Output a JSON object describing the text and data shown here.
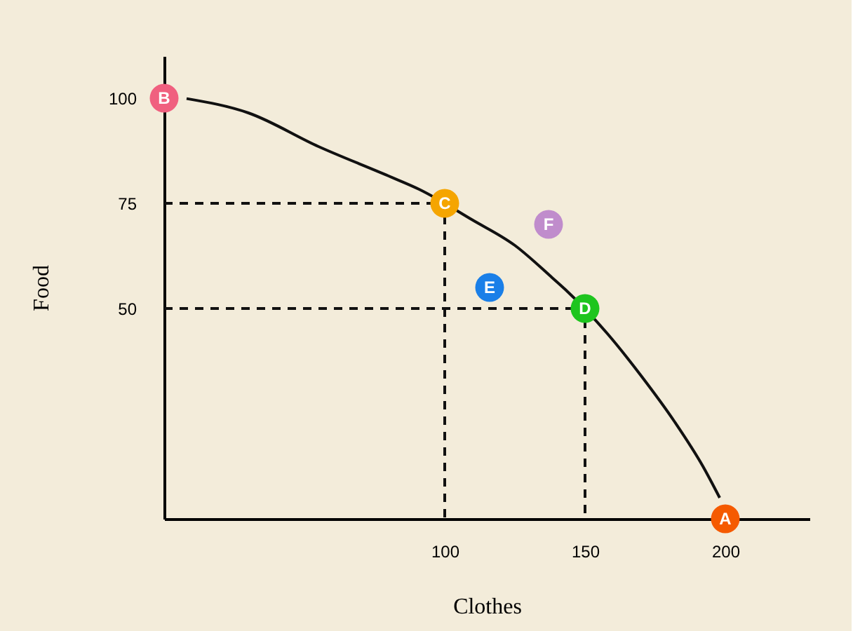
{
  "chart_data": {
    "type": "line",
    "xlabel": "Clothes",
    "ylabel": "Food",
    "xlim": [
      0,
      230
    ],
    "ylim": [
      0,
      110
    ],
    "xticks": [
      100,
      150,
      200
    ],
    "yticks": [
      50,
      75,
      100
    ],
    "grid": false,
    "legend": false,
    "series": [
      {
        "color": "#111111",
        "line_style": "solid",
        "x": [
          8,
          30,
          55,
          80,
          91,
          110,
          125,
          138,
          143,
          158,
          170,
          182,
          192,
          198
        ],
        "values": [
          99.9,
          96.5,
          88.5,
          81.5,
          78.3,
          71,
          65,
          57.5,
          54.5,
          44,
          34,
          23,
          12.5,
          5
        ]
      },
      {
        "color": "#111111",
        "line_style": "dashed",
        "x": [
          0,
          100,
          100
        ],
        "values": [
          75,
          75,
          0
        ]
      },
      {
        "color": "#111111",
        "line_style": "dashed",
        "x": [
          0,
          150,
          150
        ],
        "values": [
          50,
          50,
          0
        ]
      },
      {
        "type": "scatter",
        "marker": "circle",
        "x": [
          200,
          0,
          100,
          150,
          116,
          137
        ],
        "values": [
          0,
          100,
          75,
          50,
          55,
          70
        ],
        "colors": [
          "#f55a00",
          "#f0607f",
          "#f5a500",
          "#1ec51e",
          "#1a7fe8",
          "#c08ccc"
        ]
      }
    ],
    "annotations": [
      {
        "text": "A",
        "x": 200,
        "y": 0
      },
      {
        "text": "B",
        "x": 0,
        "y": 100
      },
      {
        "text": "C",
        "x": 100,
        "y": 75
      },
      {
        "text": "D",
        "x": 150,
        "y": 50
      },
      {
        "text": "E",
        "x": 116,
        "y": 55
      },
      {
        "text": "F",
        "x": 137,
        "y": 70
      }
    ]
  }
}
